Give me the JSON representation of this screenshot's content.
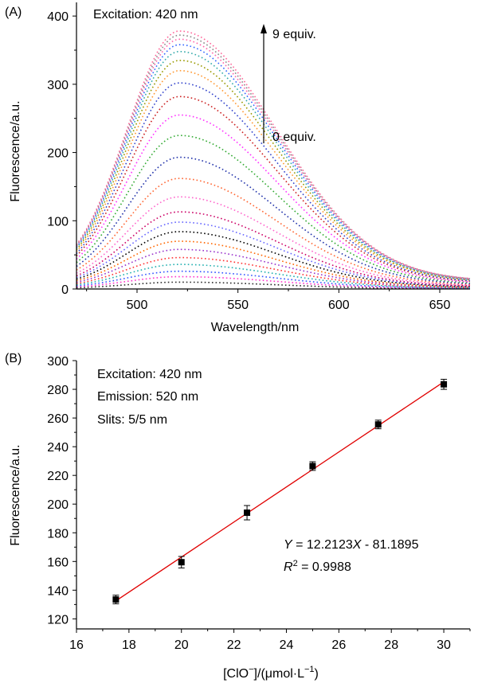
{
  "chart_data": [
    {
      "type": "line",
      "panel_label": "(A)",
      "annotation": "Excitation: 420 nm",
      "arrow_top_label": "9 equiv.",
      "arrow_bottom_label": "0 equiv.",
      "xlabel": "Wavelength/nm",
      "ylabel": "Fluorescence/a.u.",
      "xlim": [
        470,
        665
      ],
      "ylim": [
        0,
        420
      ],
      "xticks": [
        500,
        550,
        600,
        650
      ],
      "yticks": [
        0,
        100,
        200,
        300,
        400
      ],
      "peak_wavelength": 521,
      "line_style": "dotted",
      "series": [
        {
          "name": "c0",
          "peak": 10,
          "color": "#2a2a2a"
        },
        {
          "name": "c1",
          "peak": 18,
          "color": "#ff33cc"
        },
        {
          "name": "c2",
          "peak": 26,
          "color": "#3355ff"
        },
        {
          "name": "c3",
          "peak": 36,
          "color": "#22b0b0"
        },
        {
          "name": "c4",
          "peak": 46,
          "color": "#ff3333"
        },
        {
          "name": "c5",
          "peak": 58,
          "color": "#9933cc"
        },
        {
          "name": "c6",
          "peak": 70,
          "color": "#ff6600"
        },
        {
          "name": "c7",
          "peak": 84,
          "color": "#000000"
        },
        {
          "name": "c8",
          "peak": 98,
          "color": "#6666ff"
        },
        {
          "name": "c9",
          "peak": 113,
          "color": "#cc0066"
        },
        {
          "name": "c10",
          "peak": 135,
          "color": "#ff66cc"
        },
        {
          "name": "c11",
          "peak": 162,
          "color": "#ff6633"
        },
        {
          "name": "c12",
          "peak": 193,
          "color": "#2233aa"
        },
        {
          "name": "c13",
          "peak": 225,
          "color": "#33aa33"
        },
        {
          "name": "c14",
          "peak": 255,
          "color": "#ff33ff"
        },
        {
          "name": "c15",
          "peak": 282,
          "color": "#cc2222"
        },
        {
          "name": "c16",
          "peak": 302,
          "color": "#3344cc"
        },
        {
          "name": "c17",
          "peak": 320,
          "color": "#ff9933"
        },
        {
          "name": "c18",
          "peak": 335,
          "color": "#999900"
        },
        {
          "name": "c19",
          "peak": 348,
          "color": "#33aaaa"
        },
        {
          "name": "c20",
          "peak": 358,
          "color": "#3366ff"
        },
        {
          "name": "c21",
          "peak": 366,
          "color": "#ff66aa"
        },
        {
          "name": "c22",
          "peak": 372,
          "color": "#888888"
        },
        {
          "name": "c23",
          "peak": 378,
          "color": "#ff6699"
        }
      ]
    },
    {
      "type": "scatter",
      "panel_label": "(B)",
      "annotations": [
        "Excitation: 420 nm",
        "Emission: 520 nm",
        "Slits: 5/5 nm"
      ],
      "equation": {
        "y": "Y",
        "eq": " = 12.2123",
        "x": "X",
        "rest": " - 81.1895"
      },
      "r2": {
        "r": "R",
        "sup": "2",
        "rest": " = 0.9988"
      },
      "xlabel": {
        "pre": "[ClO",
        "sup1": "−",
        "mid": "]/(μmol·L",
        "sup2": "−1",
        "post": ")"
      },
      "ylabel": "Fluorescence/a.u.",
      "xlim": [
        16,
        31
      ],
      "ylim": [
        113,
        300
      ],
      "xticks": [
        16,
        18,
        20,
        22,
        24,
        26,
        28,
        30
      ],
      "yticks": [
        120,
        140,
        160,
        180,
        200,
        220,
        240,
        260,
        280,
        300
      ],
      "x": [
        17.5,
        20,
        22.5,
        25,
        27.5,
        30
      ],
      "y": [
        133.5,
        159.5,
        194,
        226.5,
        255.5,
        283.5
      ],
      "err": [
        3,
        4,
        5,
        3,
        3,
        3.5
      ],
      "fit": {
        "slope": 12.2123,
        "intercept": -81.1895,
        "xrange": [
          17.5,
          30
        ],
        "color": "#e00000"
      },
      "marker_color": "#000000"
    }
  ]
}
